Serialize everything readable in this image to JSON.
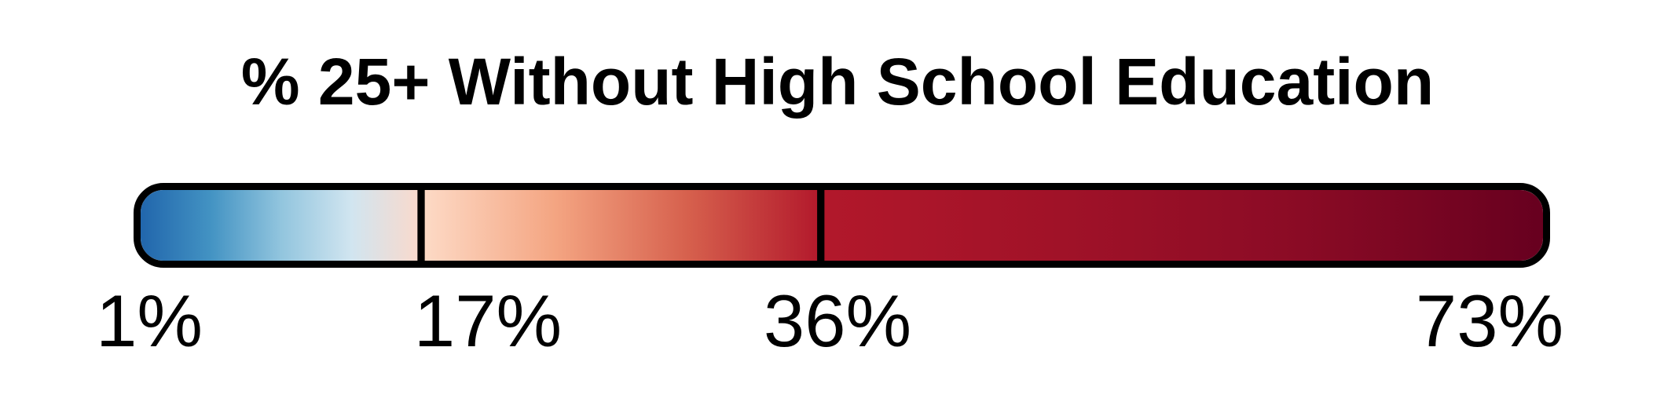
{
  "legend": {
    "title": "% 25+ Without High School Education",
    "scale": {
      "type": "diverging",
      "segments": [
        {
          "from": 1,
          "to": 17,
          "colors": [
            "#2166ac",
            "#4393c3",
            "#92c5de",
            "#d1e5f0",
            "#fbd9cb"
          ]
        },
        {
          "from": 17,
          "to": 36,
          "colors": [
            "#fddbc7",
            "#f4a582",
            "#d6604d",
            "#b2182b"
          ]
        },
        {
          "from": 36,
          "to": 73,
          "colors": [
            "#b2182b",
            "#a01228",
            "#8a0b25",
            "#67001f"
          ]
        }
      ],
      "border_color": "#000000",
      "divider_color": "#000000"
    },
    "ticks": [
      {
        "value": 1,
        "label": "1%"
      },
      {
        "value": 17,
        "label": "17%"
      },
      {
        "value": 36,
        "label": "36%"
      },
      {
        "value": 73,
        "label": "73%"
      }
    ]
  }
}
